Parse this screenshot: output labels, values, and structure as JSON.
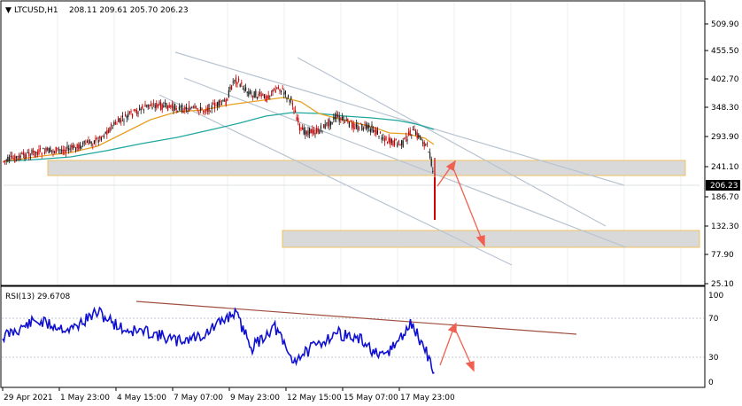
{
  "main_chart": {
    "symbol_timeframe": "LTCUSD,H1",
    "ohlc": "208.11 209.61 205.70 206.23",
    "menu_arrow": "▼",
    "price_labels": [
      "509.90",
      "455.50",
      "402.70",
      "348.30",
      "293.90",
      "241.10",
      "186.70",
      "132.30",
      "77.90",
      "25.10"
    ],
    "current_price": "206.23",
    "colors": {
      "candle_bull": "#1a1a1a",
      "candle_bear": "#cc0000",
      "ma_fast": "#e8a020",
      "ma_slow": "#20a8a0",
      "trendline": "#b8c4d0",
      "zone_fill": "#d9d9d9",
      "zone_border": "#f0c060",
      "arrow": "#f06050",
      "price_tag_bg": "#000000"
    }
  },
  "rsi_panel": {
    "title": "RSI(13) 29.6708",
    "levels": [
      "100",
      "70",
      "30",
      "0"
    ],
    "colors": {
      "line": "#1010d0",
      "trendline": "#a05040",
      "arrow": "#f06050"
    }
  },
  "time_axis": {
    "labels": [
      "29 Apr 2021",
      "1 May 23:00",
      "4 May 15:00",
      "7 May 07:00",
      "9 May 23:00",
      "12 May 15:00",
      "15 May 07:00",
      "17 May 23:00"
    ]
  }
}
